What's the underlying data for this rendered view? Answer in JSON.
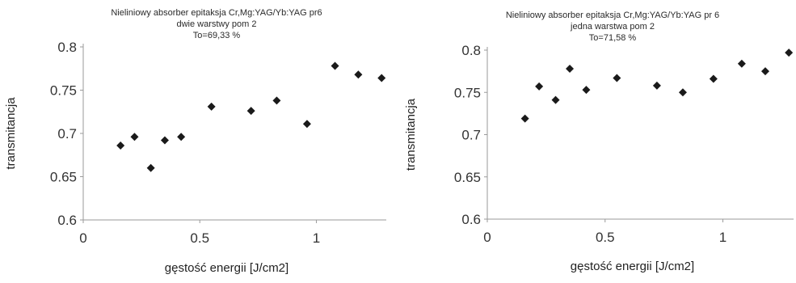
{
  "chart_data": [
    {
      "type": "scatter",
      "title_lines": [
        "Nieliniowy absorber epitaksja Cr,Mg:YAG/Yb:YAG pr6",
        "dwie warstwy pom 2",
        "To=69,33 %"
      ],
      "xlabel": "gęstość energii [J/cm2]",
      "ylabel": "transmitancja",
      "xlim": [
        0,
        1.3
      ],
      "ylim": [
        0.6,
        0.8
      ],
      "xticks": [
        "0",
        "0.5",
        "1"
      ],
      "yticks": [
        "0.8",
        "0.75",
        "0.7",
        "0.65",
        "0.6"
      ],
      "grid": false,
      "marker": "diamond",
      "x": [
        0.16,
        0.22,
        0.29,
        0.35,
        0.42,
        0.55,
        0.72,
        0.83,
        0.96,
        1.08,
        1.18,
        1.28
      ],
      "y": [
        0.686,
        0.696,
        0.66,
        0.692,
        0.696,
        0.731,
        0.726,
        0.738,
        0.711,
        0.778,
        0.768,
        0.764
      ]
    },
    {
      "type": "scatter",
      "title_lines": [
        "Nieliniowy absorber epitaksja Cr,Mg:YAG/Yb:YAG pr 6",
        "jedna warstwa pom 2",
        "To=71,58 %"
      ],
      "xlabel": "gęstość energii [J/cm2]",
      "ylabel": "transmitancja",
      "xlim": [
        0,
        1.3
      ],
      "ylim": [
        0.6,
        0.8
      ],
      "xticks": [
        "0",
        "0.5",
        "1"
      ],
      "yticks": [
        "0.8",
        "0.75",
        "0.7",
        "0.65",
        "0.6"
      ],
      "grid": false,
      "marker": "diamond",
      "x": [
        0.16,
        0.22,
        0.29,
        0.35,
        0.42,
        0.55,
        0.72,
        0.83,
        0.96,
        1.08,
        1.18,
        1.28
      ],
      "y": [
        0.719,
        0.757,
        0.741,
        0.778,
        0.753,
        0.767,
        0.758,
        0.75,
        0.766,
        0.784,
        0.775,
        0.797
      ]
    }
  ]
}
